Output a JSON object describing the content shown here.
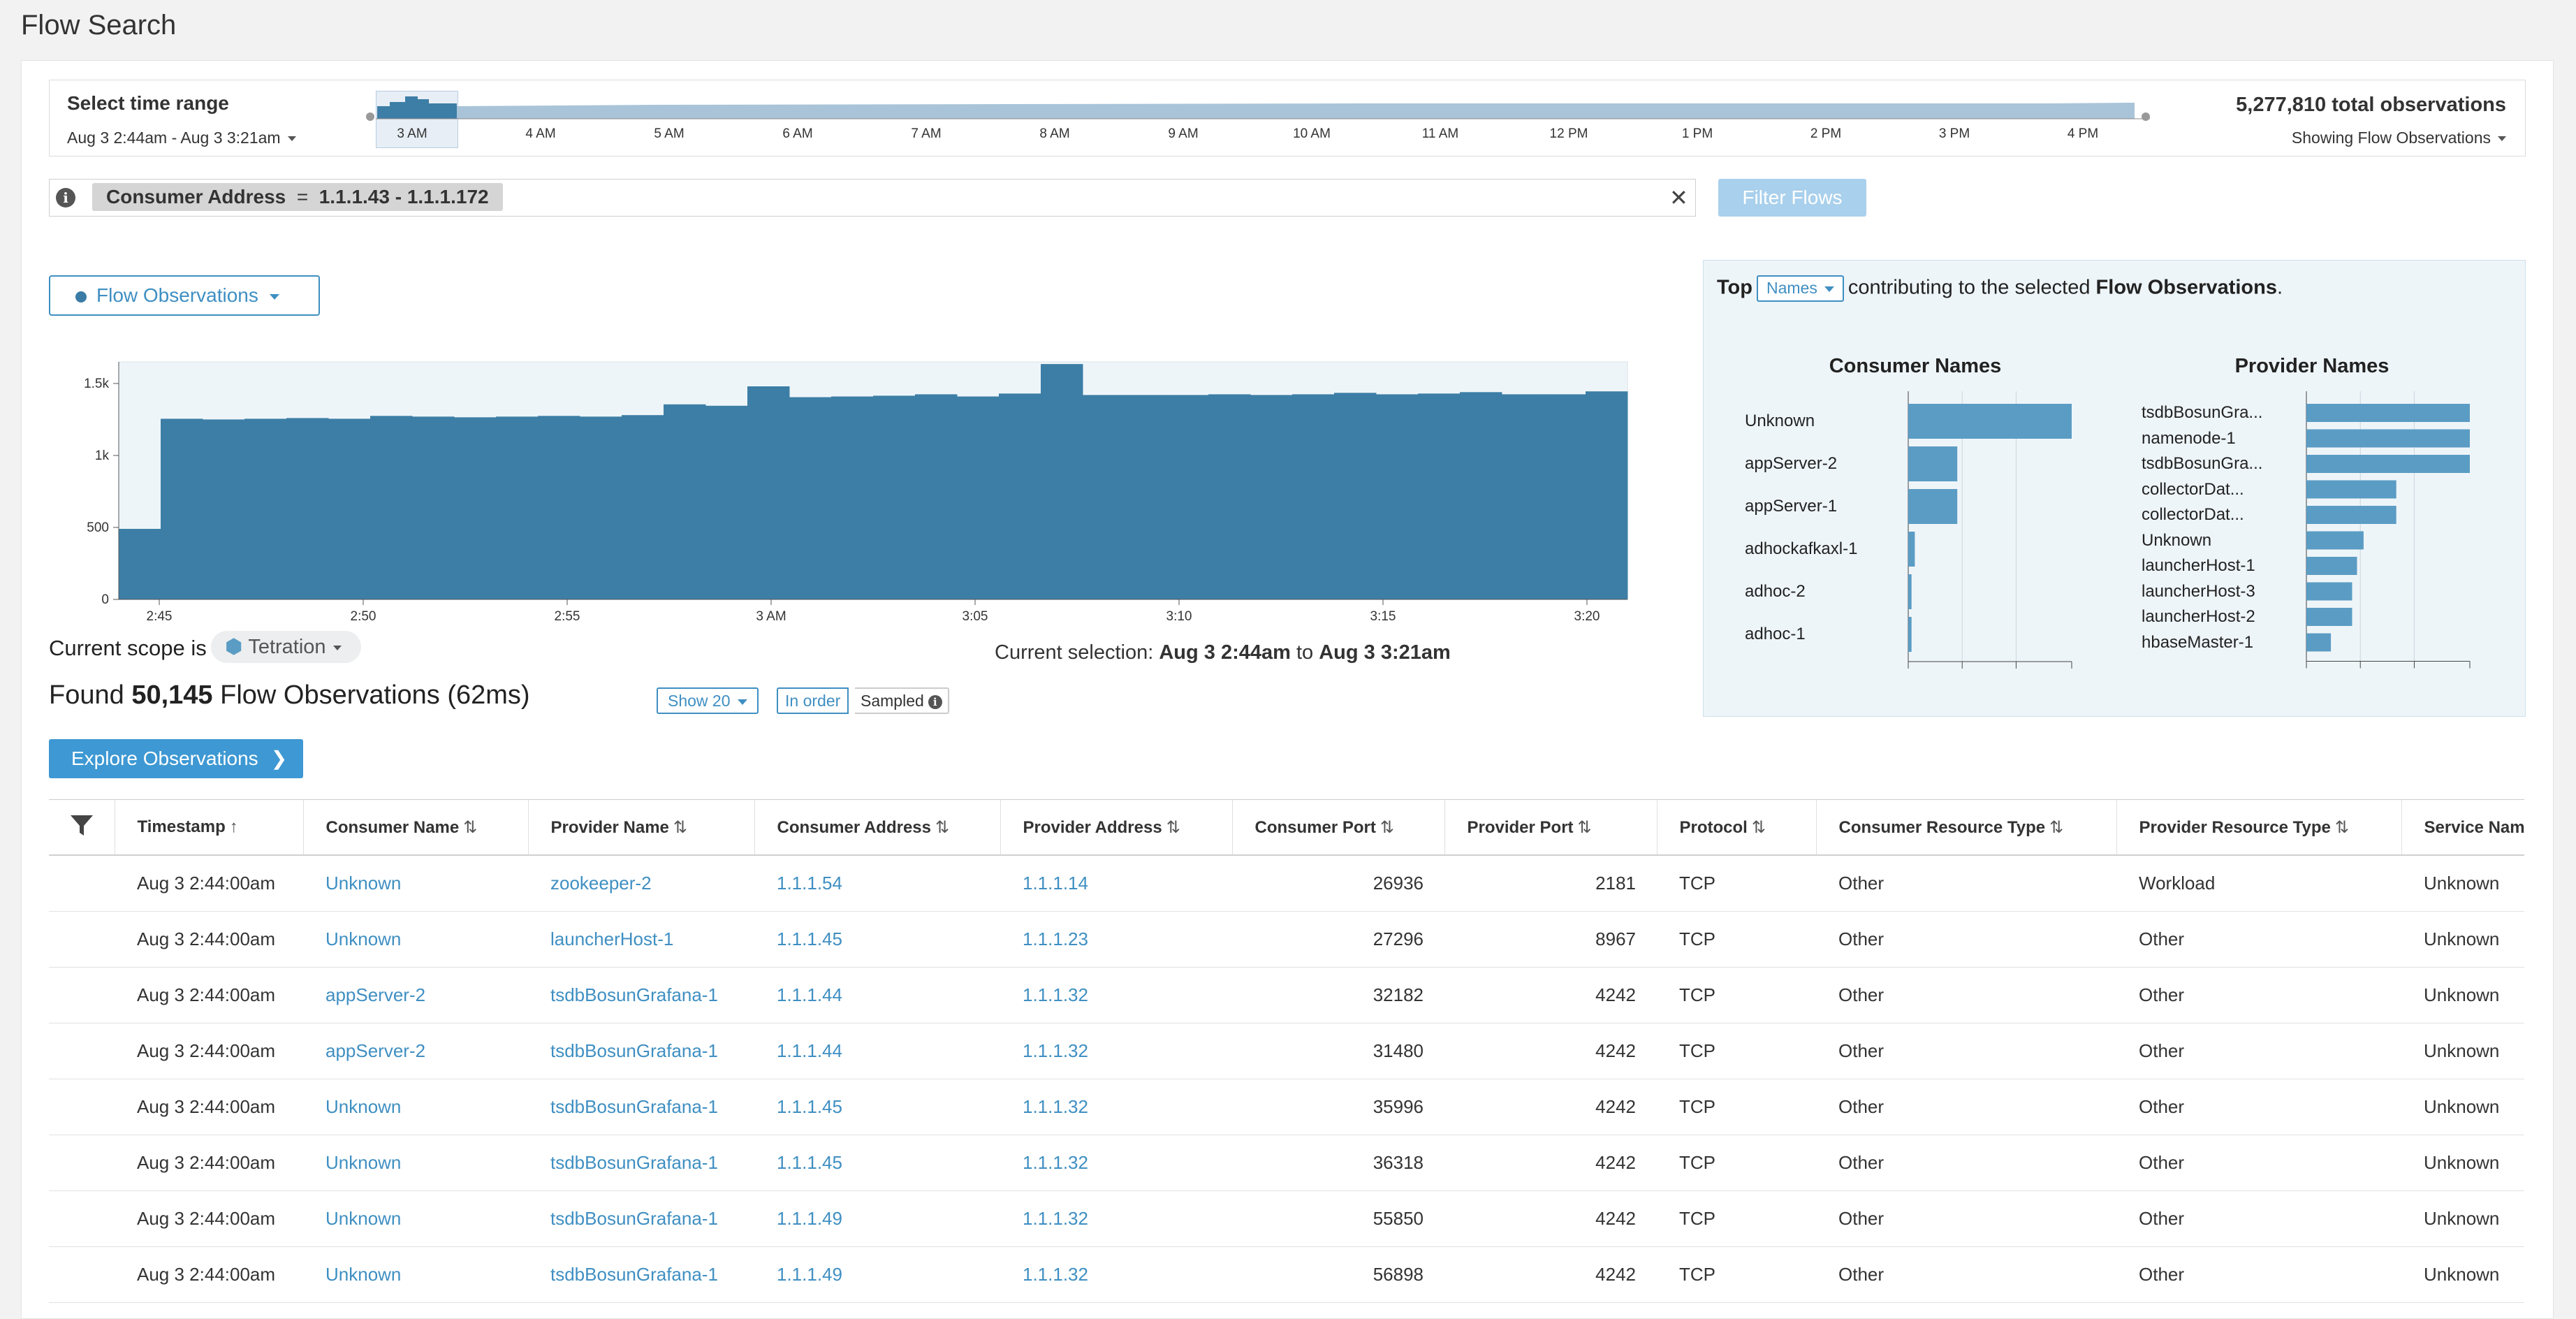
{
  "page_title": "Flow Search",
  "time_range": {
    "label": "Select time range",
    "dates": "Aug 3 2:44am - Aug 3 3:21am",
    "total": "5,277,810 total observations",
    "showing": "Showing Flow Observations",
    "ticks": [
      "3 AM",
      "4 AM",
      "5 AM",
      "6 AM",
      "7 AM",
      "8 AM",
      "9 AM",
      "10 AM",
      "11 AM",
      "12 PM",
      "1 PM",
      "2 PM",
      "3 PM",
      "4 PM"
    ]
  },
  "filter": {
    "field": "Consumer Address",
    "operator": "=",
    "value": "1.1.1.43 - 1.1.1.172",
    "button": "Filter Flows"
  },
  "metric_dropdown": "Flow Observations",
  "chart_data": {
    "type": "bar",
    "y_ticks": [
      "1.5k",
      "1k",
      "500",
      "0"
    ],
    "ylim": [
      0,
      1650
    ],
    "x_ticks": [
      "2:45",
      "2:50",
      "2:55",
      "3 AM",
      "3:05",
      "3:10",
      "3:15",
      "3:20"
    ],
    "values": [
      490,
      1255,
      1250,
      1255,
      1260,
      1255,
      1275,
      1270,
      1265,
      1270,
      1275,
      1270,
      1280,
      1355,
      1345,
      1480,
      1405,
      1410,
      1415,
      1425,
      1410,
      1430,
      1635,
      1420,
      1420,
      1420,
      1425,
      1420,
      1425,
      1435,
      1425,
      1430,
      1440,
      1425,
      1425,
      1445
    ],
    "color": "#3d7ea6"
  },
  "scope": {
    "label": "Current scope is",
    "value": "Tetration"
  },
  "selection": {
    "prefix": "Current selection:",
    "start": "Aug 3 2:44am",
    "mid": "to",
    "end": "Aug 3 3:21am"
  },
  "found": {
    "prefix": "Found",
    "count": "50,145",
    "suffix": "Flow Observations (62ms)"
  },
  "controls": {
    "show": "Show 20",
    "inorder": "In order",
    "sampled": "Sampled"
  },
  "explore_button": "Explore Observations",
  "top_panel": {
    "prefix": "Top",
    "dropdown": "Names",
    "mid": "contributing to the selected",
    "metric": "Flow Observations",
    "consumer": {
      "title": "Consumer Names",
      "labels": [
        "Unknown",
        "appServer-2",
        "appServer-1",
        "adhockafkaxl-1",
        "adhoc-2",
        "adhoc-1"
      ],
      "values": [
        100,
        30,
        30,
        4,
        2,
        2
      ]
    },
    "provider": {
      "title": "Provider Names",
      "labels": [
        "tsdbBosunGra...",
        "namenode-1",
        "tsdbBosunGra...",
        "collectorDat...",
        "collectorDat...",
        "Unknown",
        "launcherHost-1",
        "launcherHost-3",
        "launcherHost-2",
        "hbaseMaster-1"
      ],
      "values": [
        100,
        100,
        100,
        55,
        55,
        35,
        31,
        28,
        28,
        15
      ]
    },
    "bar_color": "#5b9cc4"
  },
  "table": {
    "headers": [
      "Timestamp",
      "Consumer Name",
      "Provider Name",
      "Consumer Address",
      "Provider Address",
      "Consumer Port",
      "Provider Port",
      "Protocol",
      "Consumer Resource Type",
      "Provider Resource Type",
      "Service Name"
    ],
    "rows": [
      [
        "Aug 3 2:44:00am",
        "Unknown",
        "zookeeper-2",
        "1.1.1.54",
        "1.1.1.14",
        "26936",
        "2181",
        "TCP",
        "Other",
        "Workload",
        "Unknown"
      ],
      [
        "Aug 3 2:44:00am",
        "Unknown",
        "launcherHost-1",
        "1.1.1.45",
        "1.1.1.23",
        "27296",
        "8967",
        "TCP",
        "Other",
        "Other",
        "Unknown"
      ],
      [
        "Aug 3 2:44:00am",
        "appServer-2",
        "tsdbBosunGrafana-1",
        "1.1.1.44",
        "1.1.1.32",
        "32182",
        "4242",
        "TCP",
        "Other",
        "Other",
        "Unknown"
      ],
      [
        "Aug 3 2:44:00am",
        "appServer-2",
        "tsdbBosunGrafana-1",
        "1.1.1.44",
        "1.1.1.32",
        "31480",
        "4242",
        "TCP",
        "Other",
        "Other",
        "Unknown"
      ],
      [
        "Aug 3 2:44:00am",
        "Unknown",
        "tsdbBosunGrafana-1",
        "1.1.1.45",
        "1.1.1.32",
        "35996",
        "4242",
        "TCP",
        "Other",
        "Other",
        "Unknown"
      ],
      [
        "Aug 3 2:44:00am",
        "Unknown",
        "tsdbBosunGrafana-1",
        "1.1.1.45",
        "1.1.1.32",
        "36318",
        "4242",
        "TCP",
        "Other",
        "Other",
        "Unknown"
      ],
      [
        "Aug 3 2:44:00am",
        "Unknown",
        "tsdbBosunGrafana-1",
        "1.1.1.49",
        "1.1.1.32",
        "55850",
        "4242",
        "TCP",
        "Other",
        "Other",
        "Unknown"
      ],
      [
        "Aug 3 2:44:00am",
        "Unknown",
        "tsdbBosunGrafana-1",
        "1.1.1.49",
        "1.1.1.32",
        "56898",
        "4242",
        "TCP",
        "Other",
        "Other",
        "Unknown"
      ]
    ]
  }
}
